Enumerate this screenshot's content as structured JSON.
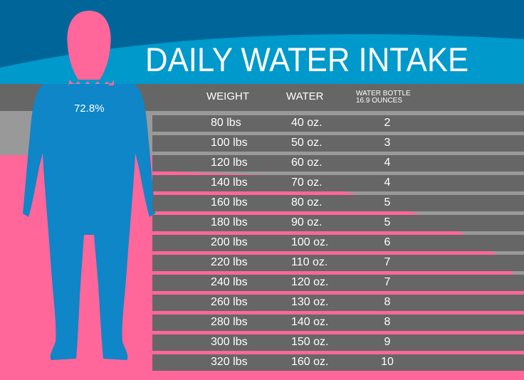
{
  "title": "DAILY WATER INTAKE",
  "body_water_percent": "72.8%",
  "colors": {
    "dark_blue": "#006699",
    "blue": "#0099cc",
    "figure_blue": "#0e86c8",
    "pink": "#ff6699",
    "gray": "#666666",
    "light_gray": "#999999"
  },
  "chart_data": {
    "type": "table",
    "columns": [
      "WEIGHT",
      "WATER",
      "WATER BOTTLE",
      "16.9 OUNCES"
    ],
    "header": {
      "weight": "WEIGHT",
      "water": "WATER",
      "bottle_line1": "WATER BOTTLE",
      "bottle_line2": "16.9 OUNCES"
    },
    "rows": [
      {
        "weight": "80 lbs",
        "water": "40 oz.",
        "bottles": "2"
      },
      {
        "weight": "100 lbs",
        "water": "50 oz.",
        "bottles": "3"
      },
      {
        "weight": "120 lbs",
        "water": "60 oz.",
        "bottles": "4"
      },
      {
        "weight": "140 lbs",
        "water": "70 oz.",
        "bottles": "4"
      },
      {
        "weight": "160 lbs",
        "water": "80 oz.",
        "bottles": "5"
      },
      {
        "weight": "180 lbs",
        "water": "90 oz.",
        "bottles": "5"
      },
      {
        "weight": "200 lbs",
        "water": "100 oz.",
        "bottles": "6"
      },
      {
        "weight": "220 lbs",
        "water": "110 oz.",
        "bottles": "7"
      },
      {
        "weight": "240 lbs",
        "water": "120 oz.",
        "bottles": "7"
      },
      {
        "weight": "260 lbs",
        "water": "130 oz.",
        "bottles": "8"
      },
      {
        "weight": "280 lbs",
        "water": "140 oz.",
        "bottles": "8"
      },
      {
        "weight": "300 lbs",
        "water": "150 oz.",
        "bottles": "9"
      },
      {
        "weight": "320 lbs",
        "water": "160 oz.",
        "bottles": "10"
      }
    ]
  }
}
